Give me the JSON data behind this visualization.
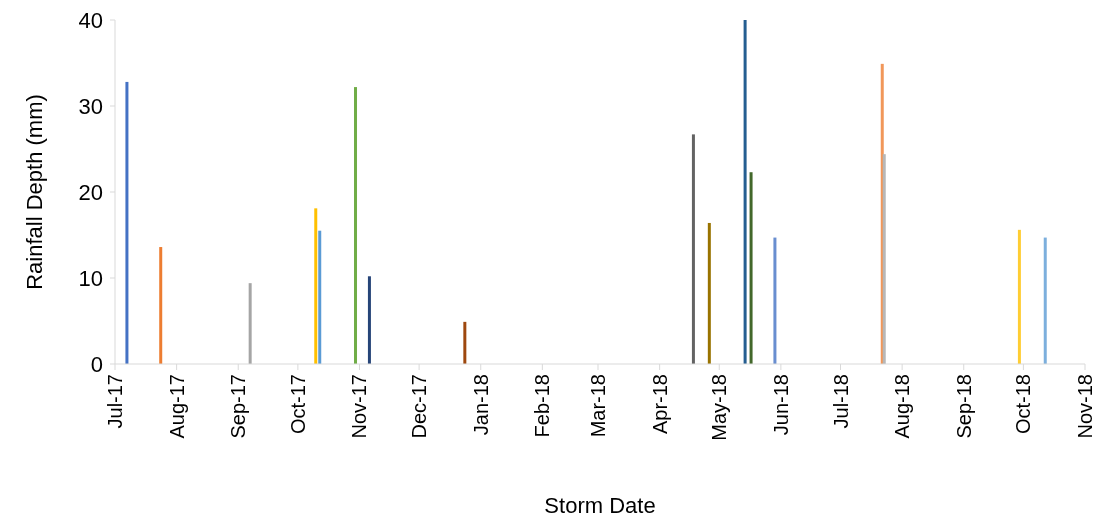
{
  "chart_data": {
    "type": "bar",
    "xlabel": "Storm Date",
    "ylabel": "Rainfall Depth (mm)",
    "x": [
      "2017-07-07",
      "2017-07-24",
      "2017-09-07",
      "2017-10-10",
      "2017-10-12",
      "2017-10-30",
      "2017-11-06",
      "2017-12-24",
      "2018-04-18",
      "2018-04-26",
      "2018-05-14",
      "2018-05-17",
      "2018-05-29",
      "2018-07-22",
      "2018-07-23",
      "2018-09-29",
      "2018-10-12"
    ],
    "values": [
      32.8,
      13.6,
      9.4,
      18.1,
      15.5,
      32.2,
      10.2,
      4.9,
      26.7,
      16.4,
      40,
      22.3,
      14.7,
      34.9,
      24.4,
      15.6,
      14.7
    ],
    "colors": [
      "#4472c4",
      "#ed7d31",
      "#a5a5a5",
      "#ffc000",
      "#5b9bd5",
      "#70ad47",
      "#264478",
      "#9e480e",
      "#636363",
      "#997300",
      "#255e91",
      "#43682b",
      "#698ed0",
      "#f1975a",
      "#b7b7b7",
      "#ffcd33",
      "#7cafdd"
    ],
    "xlim": [
      "2017-07-01",
      "2018-11-01"
    ],
    "xticks": [
      {
        "value": "2017-07-01",
        "label": "Jul-17"
      },
      {
        "value": "2017-08-01",
        "label": "Aug-17"
      },
      {
        "value": "2017-09-01",
        "label": "Sep-17"
      },
      {
        "value": "2017-10-01",
        "label": "Oct-17"
      },
      {
        "value": "2017-11-01",
        "label": "Nov-17"
      },
      {
        "value": "2017-12-01",
        "label": "Dec-17"
      },
      {
        "value": "2018-01-01",
        "label": "Jan-18"
      },
      {
        "value": "2018-02-01",
        "label": "Feb-18"
      },
      {
        "value": "2018-03-01",
        "label": "Mar-18"
      },
      {
        "value": "2018-04-01",
        "label": "Apr-18"
      },
      {
        "value": "2018-05-01",
        "label": "May-18"
      },
      {
        "value": "2018-06-01",
        "label": "Jun-18"
      },
      {
        "value": "2018-07-01",
        "label": "Jul-18"
      },
      {
        "value": "2018-08-01",
        "label": "Aug-18"
      },
      {
        "value": "2018-09-01",
        "label": "Sep-18"
      },
      {
        "value": "2018-10-01",
        "label": "Oct-18"
      },
      {
        "value": "2018-11-01",
        "label": "Nov-18"
      }
    ],
    "ylim": [
      0,
      40
    ],
    "yticks": [
      0,
      10,
      20,
      30,
      40
    ],
    "grid": false
  }
}
